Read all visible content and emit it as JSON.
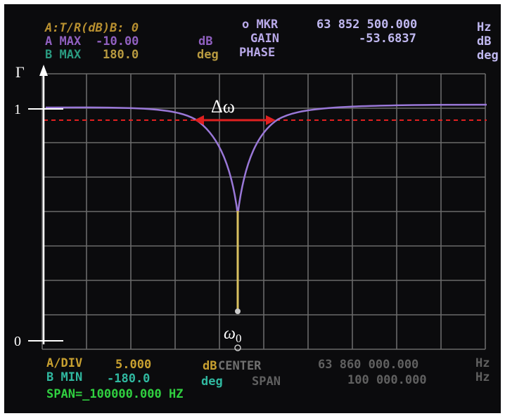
{
  "header": {
    "channel": "A:T/R(dB)B: 0",
    "a_max": "A MAX",
    "a_max_value": "-10.00",
    "a_max_unit": "dB",
    "b_max": "B MAX",
    "b_max_value": "180.0",
    "b_max_unit": "deg",
    "marker": "o MKR",
    "gain": "GAIN",
    "phase": "PHASE",
    "marker_freq": "63 852 500.000",
    "marker_freq_unit": "Hz",
    "gain_value": "-53.6837",
    "gain_unit": "dB",
    "phase_unit": "deg"
  },
  "footer": {
    "a_div": "A/DIV",
    "a_div_value": "5.000",
    "a_div_unit": "dB",
    "b_min": "B MIN",
    "b_min_value": "-180.0",
    "b_min_unit": "deg",
    "span_set": "SPAN=_100000.000 HZ",
    "center": "CENTER",
    "center_value": "63 860 000.000",
    "center_unit": "Hz",
    "span": "SPAN",
    "span_value": "100 000.000",
    "span_unit": "Hz"
  },
  "annotations": {
    "gamma": "Γ",
    "one": "1",
    "zero": "0",
    "delta_omega": "Δω",
    "omega": "ω",
    "omega_sub": "0"
  }
}
